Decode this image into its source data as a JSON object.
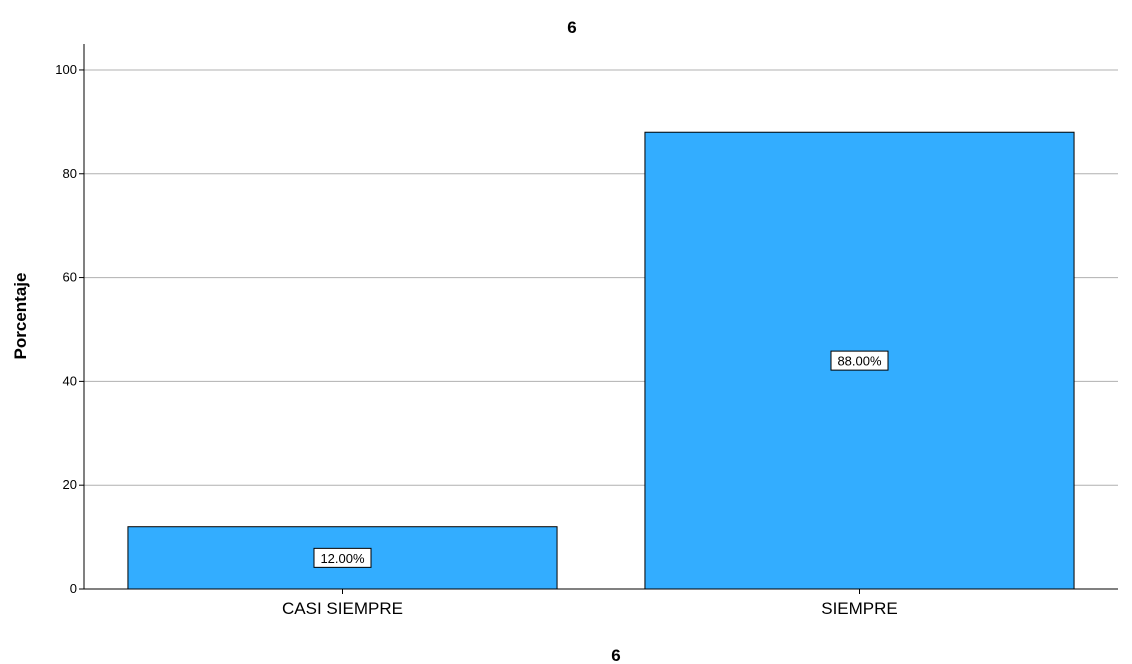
{
  "chart_data": {
    "type": "bar",
    "title": "6",
    "xlabel": "6",
    "ylabel": "Porcentaje",
    "categories": [
      "CASI SIEMPRE",
      "SIEMPRE"
    ],
    "values": [
      12,
      88
    ],
    "data_labels": [
      "12.00%",
      "88.00%"
    ],
    "ylim": [
      0,
      105
    ],
    "yticks": [
      0,
      20,
      40,
      60,
      80,
      100
    ],
    "grid": true,
    "bar_color": "#33adff",
    "legend": "none"
  }
}
